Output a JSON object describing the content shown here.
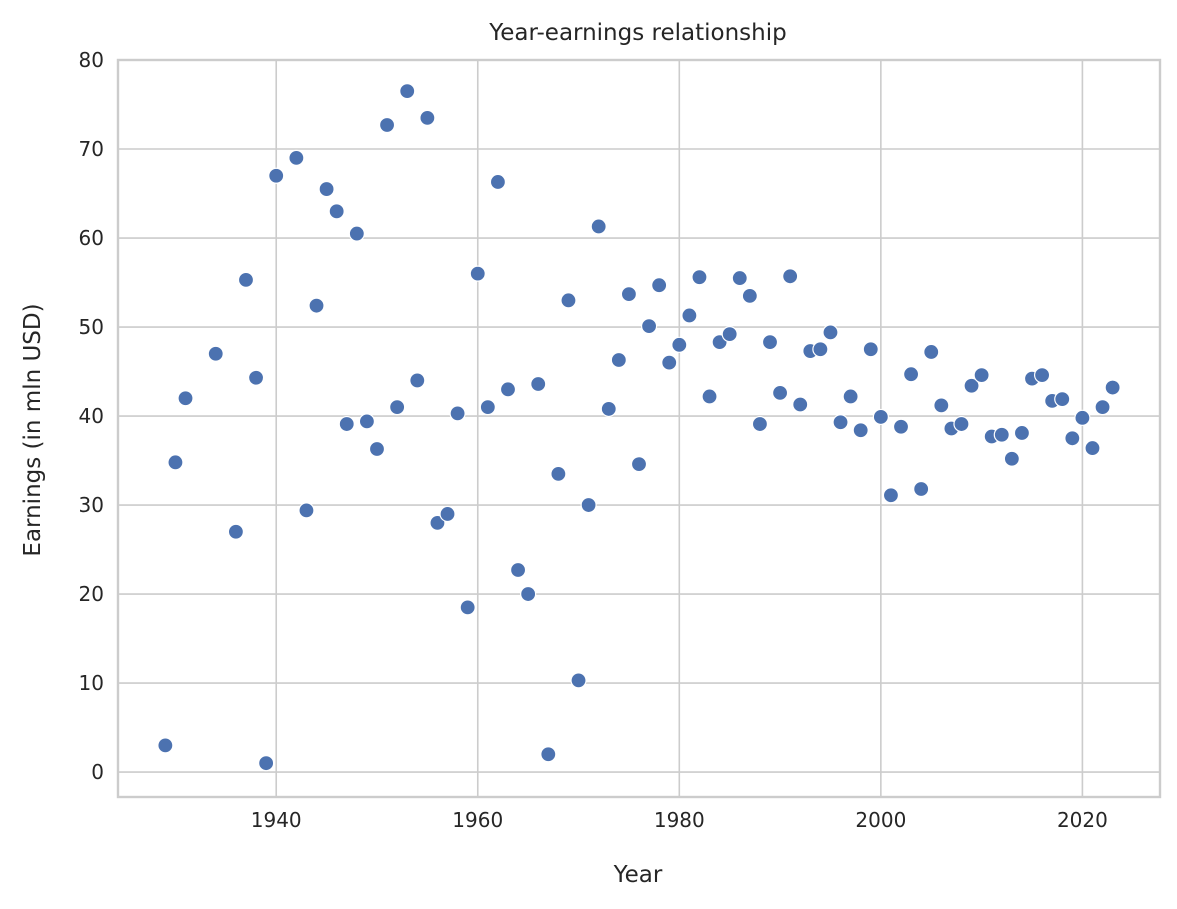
{
  "chart_data": {
    "type": "scatter",
    "title": "Year-earnings relationship",
    "xlabel": "Year",
    "ylabel": "Earnings (in mln USD)",
    "xlim": [
      1924.3,
      2027.7
    ],
    "ylim": [
      -2.8,
      80.0
    ],
    "xticks": [
      1940,
      1960,
      1980,
      2000,
      2020
    ],
    "yticks": [
      0,
      10,
      20,
      30,
      40,
      50,
      60,
      70,
      80
    ],
    "grid": true,
    "point_color": "#4c72b0",
    "points": [
      {
        "x": 1929,
        "y": 3.0
      },
      {
        "x": 1930,
        "y": 34.8
      },
      {
        "x": 1931,
        "y": 42.0
      },
      {
        "x": 1934,
        "y": 47.0
      },
      {
        "x": 1936,
        "y": 27.0
      },
      {
        "x": 1937,
        "y": 55.3
      },
      {
        "x": 1938,
        "y": 44.3
      },
      {
        "x": 1939,
        "y": 1.0
      },
      {
        "x": 1940,
        "y": 67.0
      },
      {
        "x": 1942,
        "y": 69.0
      },
      {
        "x": 1943,
        "y": 29.4
      },
      {
        "x": 1944,
        "y": 52.4
      },
      {
        "x": 1945,
        "y": 65.5
      },
      {
        "x": 1946,
        "y": 63.0
      },
      {
        "x": 1947,
        "y": 39.1
      },
      {
        "x": 1948,
        "y": 60.5
      },
      {
        "x": 1949,
        "y": 39.4
      },
      {
        "x": 1950,
        "y": 36.3
      },
      {
        "x": 1951,
        "y": 72.7
      },
      {
        "x": 1952,
        "y": 41.0
      },
      {
        "x": 1953,
        "y": 76.5
      },
      {
        "x": 1954,
        "y": 44.0
      },
      {
        "x": 1955,
        "y": 73.5
      },
      {
        "x": 1956,
        "y": 28.0
      },
      {
        "x": 1957,
        "y": 29.0
      },
      {
        "x": 1958,
        "y": 40.3
      },
      {
        "x": 1959,
        "y": 18.5
      },
      {
        "x": 1960,
        "y": 56.0
      },
      {
        "x": 1961,
        "y": 41.0
      },
      {
        "x": 1962,
        "y": 66.3
      },
      {
        "x": 1963,
        "y": 43.0
      },
      {
        "x": 1964,
        "y": 22.7
      },
      {
        "x": 1965,
        "y": 20.0
      },
      {
        "x": 1966,
        "y": 43.6
      },
      {
        "x": 1967,
        "y": 2.0
      },
      {
        "x": 1968,
        "y": 33.5
      },
      {
        "x": 1969,
        "y": 53.0
      },
      {
        "x": 1970,
        "y": 10.3
      },
      {
        "x": 1971,
        "y": 30.0
      },
      {
        "x": 1972,
        "y": 61.3
      },
      {
        "x": 1973,
        "y": 40.8
      },
      {
        "x": 1974,
        "y": 46.3
      },
      {
        "x": 1975,
        "y": 53.7
      },
      {
        "x": 1976,
        "y": 34.6
      },
      {
        "x": 1977,
        "y": 50.1
      },
      {
        "x": 1978,
        "y": 54.7
      },
      {
        "x": 1979,
        "y": 46.0
      },
      {
        "x": 1980,
        "y": 48.0
      },
      {
        "x": 1981,
        "y": 51.3
      },
      {
        "x": 1982,
        "y": 55.6
      },
      {
        "x": 1983,
        "y": 42.2
      },
      {
        "x": 1984,
        "y": 48.3
      },
      {
        "x": 1985,
        "y": 49.2
      },
      {
        "x": 1986,
        "y": 55.5
      },
      {
        "x": 1987,
        "y": 53.5
      },
      {
        "x": 1988,
        "y": 39.1
      },
      {
        "x": 1989,
        "y": 48.3
      },
      {
        "x": 1990,
        "y": 42.6
      },
      {
        "x": 1991,
        "y": 55.7
      },
      {
        "x": 1992,
        "y": 41.3
      },
      {
        "x": 1993,
        "y": 47.3
      },
      {
        "x": 1994,
        "y": 47.5
      },
      {
        "x": 1995,
        "y": 49.4
      },
      {
        "x": 1996,
        "y": 39.3
      },
      {
        "x": 1997,
        "y": 42.2
      },
      {
        "x": 1998,
        "y": 38.4
      },
      {
        "x": 1999,
        "y": 47.5
      },
      {
        "x": 2000,
        "y": 39.9
      },
      {
        "x": 2001,
        "y": 31.1
      },
      {
        "x": 2002,
        "y": 38.8
      },
      {
        "x": 2003,
        "y": 44.7
      },
      {
        "x": 2004,
        "y": 31.8
      },
      {
        "x": 2005,
        "y": 47.2
      },
      {
        "x": 2006,
        "y": 41.2
      },
      {
        "x": 2007,
        "y": 38.6
      },
      {
        "x": 2008,
        "y": 39.1
      },
      {
        "x": 2009,
        "y": 43.4
      },
      {
        "x": 2010,
        "y": 44.6
      },
      {
        "x": 2011,
        "y": 37.7
      },
      {
        "x": 2012,
        "y": 37.9
      },
      {
        "x": 2013,
        "y": 35.2
      },
      {
        "x": 2014,
        "y": 38.1
      },
      {
        "x": 2015,
        "y": 44.2
      },
      {
        "x": 2016,
        "y": 44.6
      },
      {
        "x": 2017,
        "y": 41.7
      },
      {
        "x": 2018,
        "y": 41.9
      },
      {
        "x": 2019,
        "y": 37.5
      },
      {
        "x": 2020,
        "y": 39.8
      },
      {
        "x": 2021,
        "y": 36.4
      },
      {
        "x": 2022,
        "y": 41.0
      },
      {
        "x": 2023,
        "y": 43.2
      }
    ]
  }
}
